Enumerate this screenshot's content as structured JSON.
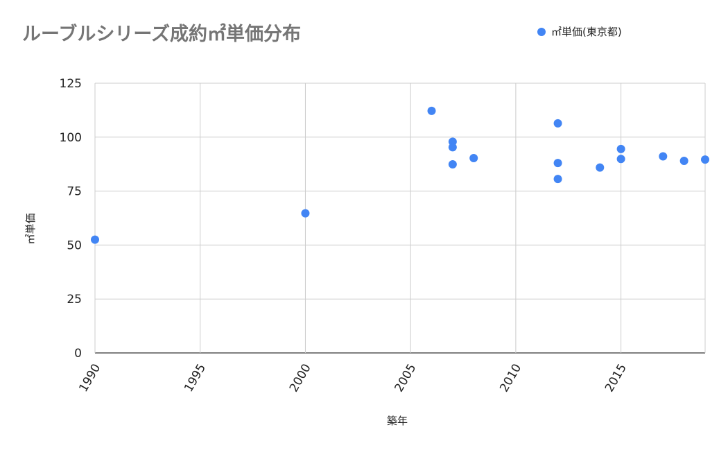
{
  "chart_data": {
    "type": "scatter",
    "title": "ルーブルシリーズ成約㎡単価分布",
    "xlabel": "築年",
    "ylabel": "㎡単価",
    "xlim": [
      1990,
      2019
    ],
    "ylim": [
      0,
      125
    ],
    "x_ticks": [
      1990,
      1995,
      2000,
      2005,
      2010,
      2015
    ],
    "y_ticks": [
      0,
      25,
      50,
      75,
      100,
      125
    ],
    "grid": true,
    "legend_position": "top-right",
    "series": [
      {
        "name": "㎡単価(東京都)",
        "color": "#4285f4",
        "points": [
          {
            "x": 1990,
            "y": 52.5
          },
          {
            "x": 2000,
            "y": 64.7
          },
          {
            "x": 2006,
            "y": 112.2
          },
          {
            "x": 2007,
            "y": 97.9
          },
          {
            "x": 2007,
            "y": 95.3
          },
          {
            "x": 2007,
            "y": 87.4
          },
          {
            "x": 2008,
            "y": 90.3
          },
          {
            "x": 2012,
            "y": 106.4
          },
          {
            "x": 2012,
            "y": 88.0
          },
          {
            "x": 2012,
            "y": 80.6
          },
          {
            "x": 2014,
            "y": 85.9
          },
          {
            "x": 2015,
            "y": 94.5
          },
          {
            "x": 2015,
            "y": 89.9
          },
          {
            "x": 2017,
            "y": 91.1
          },
          {
            "x": 2018,
            "y": 89.0
          },
          {
            "x": 2019,
            "y": 89.6
          }
        ]
      }
    ]
  }
}
